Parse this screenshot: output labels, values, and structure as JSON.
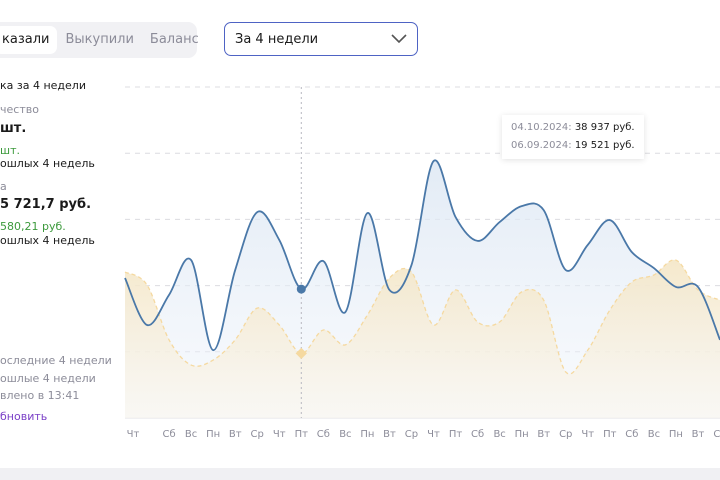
{
  "tabs": [
    {
      "label": "казали",
      "active": true
    },
    {
      "label": "Выкупили",
      "active": false
    },
    {
      "label": "Баланс",
      "active": false
    }
  ],
  "period_select": {
    "value": "За 4 недели",
    "icon": "chevron-down-icon"
  },
  "summary": {
    "title": "ка за 4 недели",
    "qty_label": "чество",
    "qty_value": "шт.",
    "qty_delta": "шт.",
    "qty_delta_note": "ошлых 4 недель",
    "sum_label": "а",
    "sum_value": "5 721,7 руб.",
    "sum_delta": "580,21 руб.",
    "sum_delta_note": "ошлых 4 недель"
  },
  "legend": {
    "current": "оследние 4 недели",
    "previous": "ошлые 4 недели",
    "updated": "влено в 13:41",
    "refresh": "бновить"
  },
  "tooltip": {
    "current_date": "04.10.2024:",
    "current_value": "38 937 руб.",
    "previous_date": "06.09.2024:",
    "previous_value": "19 521 руб."
  },
  "colors": {
    "current": "#4a78a8",
    "previous": "#f5d9a0",
    "accent": "#4e63c4",
    "link": "#7a3fc7"
  },
  "chart_data": {
    "type": "area",
    "categories": [
      "Чт",
      "Пт",
      "Сб",
      "Вс",
      "Пн",
      "Вт",
      "Ср",
      "Чт",
      "Пт",
      "Сб",
      "Вс",
      "Пн",
      "Вт",
      "Ср",
      "Чт",
      "Пт",
      "Сб",
      "Вс",
      "Пн",
      "Вт",
      "Ср",
      "Чт",
      "Пт",
      "Сб",
      "Вс",
      "Пн",
      "Вт",
      "Ср"
    ],
    "hidden_tick_labels": [
      1
    ],
    "series": [
      {
        "key": "current",
        "values": [
          42300,
          28100,
          37200,
          47700,
          20500,
          44700,
          62200,
          53800,
          38937,
          47400,
          32000,
          61900,
          38700,
          46200,
          77600,
          60700,
          53500,
          59200,
          64000,
          62800,
          44700,
          52300,
          59800,
          50100,
          45300,
          39600,
          39600,
          23600
        ]
      },
      {
        "key": "previous",
        "values": [
          44100,
          40200,
          23600,
          16000,
          17500,
          23600,
          33200,
          28100,
          19521,
          26600,
          22100,
          31100,
          42300,
          44100,
          28100,
          38700,
          29000,
          29000,
          38100,
          35600,
          13900,
          20500,
          32600,
          41100,
          43200,
          47700,
          38700,
          35600
        ]
      }
    ],
    "highlight_index": 8,
    "ylim": [
      0,
      100000
    ],
    "grid": true,
    "ylabel": "",
    "xlabel": ""
  }
}
